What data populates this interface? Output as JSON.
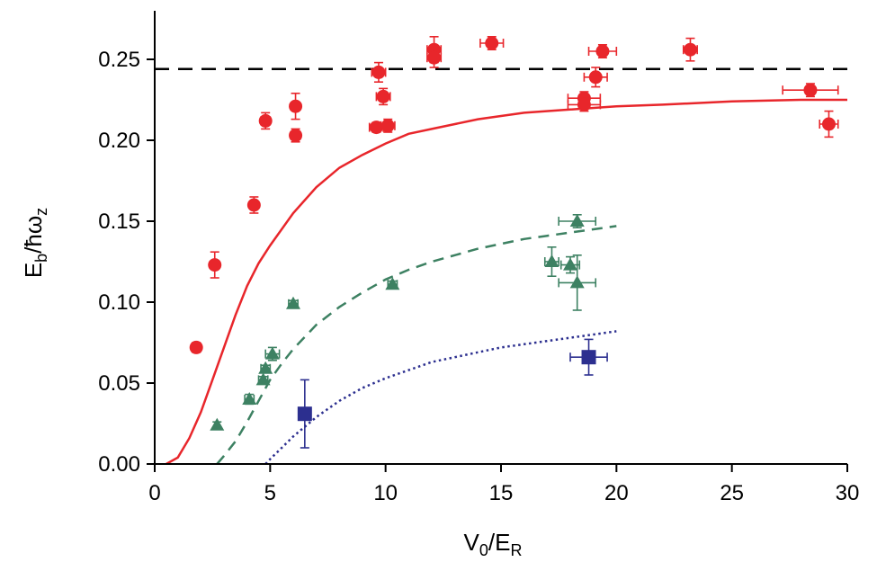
{
  "chart_data": {
    "type": "scatter",
    "title": "",
    "xlabel": "V0/ER",
    "ylabel": "Eb/ħωz",
    "xlabel_parts": {
      "main": "V",
      "sub1": "0",
      "mid": "/E",
      "sub2": "R"
    },
    "ylabel_parts": {
      "main": "E",
      "sub1": "b",
      "mid": "/ħω",
      "sub2": "z"
    },
    "xlim": [
      0,
      30
    ],
    "ylim": [
      0,
      0.28
    ],
    "xticks": [
      0,
      5,
      10,
      15,
      20,
      25,
      30
    ],
    "xtick_labels": [
      "0",
      "5",
      "10",
      "15",
      "20",
      "25",
      "30"
    ],
    "yticks": [
      0.0,
      0.05,
      0.1,
      0.15,
      0.2,
      0.25
    ],
    "ytick_labels": [
      "0.00",
      "0.05",
      "0.10",
      "0.15",
      "0.20",
      "0.25"
    ],
    "grid": false,
    "reference_line": {
      "y": 0.244,
      "style": "dashed",
      "color": "#000000"
    },
    "series": [
      {
        "marker": "circle",
        "color": "#e8262b",
        "points": [
          {
            "x": 1.8,
            "y": 0.072,
            "xerr": 0.2,
            "yerr": 0.003
          },
          {
            "x": 2.6,
            "y": 0.123,
            "xerr": 0,
            "yerr": 0.008
          },
          {
            "x": 4.3,
            "y": 0.16,
            "xerr": 0,
            "yerr": 0.005
          },
          {
            "x": 4.8,
            "y": 0.212,
            "xerr": 0.2,
            "yerr": 0.005
          },
          {
            "x": 6.1,
            "y": 0.221,
            "xerr": 0,
            "yerr": 0.008
          },
          {
            "x": 6.1,
            "y": 0.203,
            "xerr": 0.2,
            "yerr": 0.004
          },
          {
            "x": 9.6,
            "y": 0.208,
            "xerr": 0.3,
            "yerr": 0.003
          },
          {
            "x": 9.7,
            "y": 0.242,
            "xerr": 0.3,
            "yerr": 0.006
          },
          {
            "x": 9.9,
            "y": 0.227,
            "xerr": 0.3,
            "yerr": 0.005
          },
          {
            "x": 10.1,
            "y": 0.209,
            "xerr": 0.3,
            "yerr": 0.004
          },
          {
            "x": 12.1,
            "y": 0.256,
            "xerr": 0.3,
            "yerr": 0.008
          },
          {
            "x": 12.1,
            "y": 0.251,
            "xerr": 0.3,
            "yerr": 0.006
          },
          {
            "x": 14.6,
            "y": 0.26,
            "xerr": 0.5,
            "yerr": 0.004
          },
          {
            "x": 18.6,
            "y": 0.226,
            "xerr": 0.7,
            "yerr": 0.004
          },
          {
            "x": 18.6,
            "y": 0.222,
            "xerr": 0.7,
            "yerr": 0.004
          },
          {
            "x": 19.1,
            "y": 0.239,
            "xerr": 0.5,
            "yerr": 0.006
          },
          {
            "x": 19.4,
            "y": 0.255,
            "xerr": 0.6,
            "yerr": 0.004
          },
          {
            "x": 23.2,
            "y": 0.256,
            "xerr": 0.3,
            "yerr": 0.007
          },
          {
            "x": 28.4,
            "y": 0.231,
            "xerr": 1.2,
            "yerr": 0.004
          },
          {
            "x": 29.2,
            "y": 0.21,
            "xerr": 0.4,
            "yerr": 0.008
          }
        ]
      },
      {
        "marker": "triangle",
        "color": "#3d8162",
        "points": [
          {
            "x": 2.7,
            "y": 0.024,
            "xerr": 0,
            "yerr": 0.002
          },
          {
            "x": 4.1,
            "y": 0.04,
            "xerr": 0.2,
            "yerr": 0.003
          },
          {
            "x": 4.7,
            "y": 0.052,
            "xerr": 0.2,
            "yerr": 0.002
          },
          {
            "x": 4.8,
            "y": 0.059,
            "xerr": 0.2,
            "yerr": 0.002
          },
          {
            "x": 5.1,
            "y": 0.068,
            "xerr": 0.3,
            "yerr": 0.004
          },
          {
            "x": 6.0,
            "y": 0.099,
            "xerr": 0.2,
            "yerr": 0.002
          },
          {
            "x": 10.3,
            "y": 0.111,
            "xerr": 0.2,
            "yerr": 0.002
          },
          {
            "x": 17.2,
            "y": 0.125,
            "xerr": 0.3,
            "yerr": 0.009
          },
          {
            "x": 18.0,
            "y": 0.123,
            "xerr": 0.4,
            "yerr": 0.005
          },
          {
            "x": 18.3,
            "y": 0.15,
            "xerr": 0.8,
            "yerr": 0.004
          },
          {
            "x": 18.3,
            "y": 0.112,
            "xerr": 0.8,
            "yerr": 0.017
          }
        ]
      },
      {
        "marker": "square",
        "color": "#2c2f8f",
        "points": [
          {
            "x": 6.5,
            "y": 0.031,
            "xerr": 0,
            "yerr": 0.021
          },
          {
            "x": 18.8,
            "y": 0.066,
            "xerr": 0.8,
            "yerr": 0.011
          }
        ]
      }
    ],
    "curves": [
      {
        "style": "solid",
        "color": "#e8262b",
        "x": [
          0.5,
          1.0,
          1.5,
          2.0,
          2.5,
          3.0,
          3.5,
          4.0,
          4.5,
          5.0,
          6.0,
          7.0,
          8.0,
          9.0,
          10.0,
          11.0,
          12.0,
          13.0,
          14.0,
          15.0,
          16.0,
          18.0,
          20.0,
          22.0,
          25.0,
          28.0,
          30.0
        ],
        "y": [
          0.0,
          0.004,
          0.016,
          0.032,
          0.052,
          0.072,
          0.092,
          0.11,
          0.124,
          0.135,
          0.155,
          0.171,
          0.183,
          0.191,
          0.198,
          0.204,
          0.207,
          0.21,
          0.213,
          0.215,
          0.217,
          0.219,
          0.221,
          0.222,
          0.224,
          0.225,
          0.225
        ]
      },
      {
        "style": "dashed",
        "color": "#3d8162",
        "x": [
          2.7,
          3.0,
          3.5,
          4.0,
          4.5,
          5.0,
          5.5,
          6.0,
          7.0,
          8.0,
          9.0,
          10.0,
          11.0,
          12.0,
          13.0,
          14.0,
          15.0,
          16.0,
          17.0,
          18.0,
          19.0,
          20.0
        ],
        "y": [
          0.0,
          0.005,
          0.014,
          0.026,
          0.039,
          0.052,
          0.062,
          0.071,
          0.086,
          0.097,
          0.106,
          0.114,
          0.12,
          0.125,
          0.129,
          0.133,
          0.136,
          0.139,
          0.141,
          0.143,
          0.145,
          0.147
        ]
      },
      {
        "style": "dotted",
        "color": "#2c2f8f",
        "x": [
          4.8,
          5.0,
          5.5,
          6.0,
          7.0,
          8.0,
          9.0,
          10.0,
          11.0,
          12.0,
          13.0,
          14.0,
          15.0,
          16.0,
          17.0,
          18.0,
          19.0,
          20.0
        ],
        "y": [
          0.0,
          0.003,
          0.01,
          0.017,
          0.029,
          0.039,
          0.047,
          0.053,
          0.058,
          0.063,
          0.066,
          0.069,
          0.072,
          0.074,
          0.076,
          0.078,
          0.08,
          0.082
        ]
      }
    ]
  }
}
